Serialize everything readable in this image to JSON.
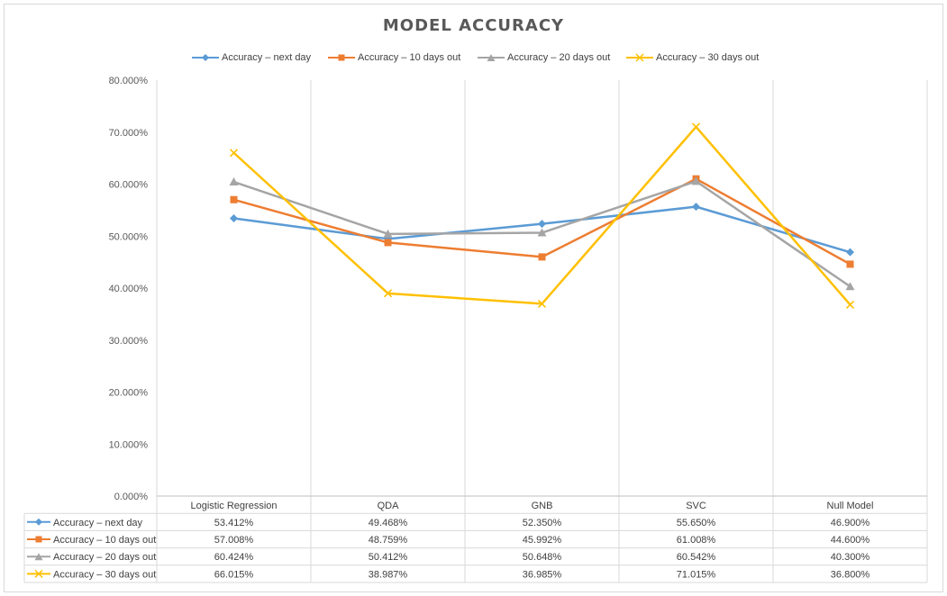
{
  "chart_data": {
    "type": "line",
    "title": "MODEL ACCURACY",
    "categories": [
      "Logistic Regression",
      "QDA",
      "GNB",
      "SVC",
      "Null Model"
    ],
    "ylim": [
      0,
      80
    ],
    "yticks": [
      "0.000%",
      "10.000%",
      "20.000%",
      "30.000%",
      "40.000%",
      "50.000%",
      "60.000%",
      "70.000%",
      "80.000%"
    ],
    "grid": "vertical category separators",
    "legend_position": "top",
    "series": [
      {
        "name": "Accuracy – next day",
        "color": "#5b9bd5",
        "marker": "diamond",
        "values": [
          53.412,
          49.468,
          52.35,
          55.65,
          46.9
        ],
        "labels": [
          "53.412%",
          "49.468%",
          "52.350%",
          "55.650%",
          "46.900%"
        ]
      },
      {
        "name": "Accuracy – 10 days out",
        "color": "#ed7d31",
        "marker": "square",
        "values": [
          57.008,
          48.759,
          45.992,
          61.008,
          44.6
        ],
        "labels": [
          "57.008%",
          "48.759%",
          "45.992%",
          "61.008%",
          "44.600%"
        ]
      },
      {
        "name": "Accuracy – 20 days out",
        "color": "#a5a5a5",
        "marker": "triangle",
        "values": [
          60.424,
          50.412,
          50.648,
          60.542,
          40.3
        ],
        "labels": [
          "60.424%",
          "50.412%",
          "50.648%",
          "60.542%",
          "40.300%"
        ]
      },
      {
        "name": "Accuracy – 30 days out",
        "color": "#ffc000",
        "marker": "x",
        "values": [
          66.015,
          38.987,
          36.985,
          71.015,
          36.8
        ],
        "labels": [
          "66.015%",
          "38.987%",
          "36.985%",
          "71.015%",
          "36.800%"
        ]
      }
    ]
  }
}
